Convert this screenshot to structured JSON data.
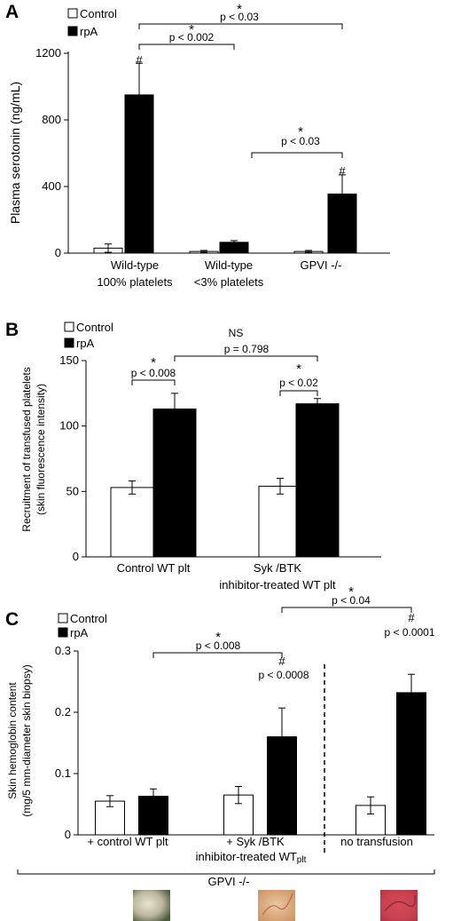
{
  "chart_data": [
    {
      "panel": "A",
      "type": "bar",
      "ylabel": "Plasma serotonin (ng/mL)",
      "ylim": [
        0,
        1200
      ],
      "yticks": [
        0,
        400,
        800,
        1200
      ],
      "categories": [
        [
          "Wild-type",
          "100% platelets"
        ],
        [
          "Wild-type",
          "<3% platelets"
        ],
        [
          "GPVI -/-"
        ]
      ],
      "series": [
        {
          "name": "Control",
          "color": "#ffffff",
          "values": [
            30,
            10,
            10
          ],
          "errors": [
            25,
            6,
            6
          ]
        },
        {
          "name": "rpA",
          "color": "#000000",
          "values": [
            950,
            65,
            355
          ],
          "errors": [
            190,
            10,
            115
          ]
        }
      ],
      "legend": "top-left",
      "annotations": [
        {
          "star": "*",
          "text": "p < 0.03"
        },
        {
          "star": "*",
          "text": "p < 0.002"
        },
        {
          "star": "*",
          "text": "p < 0.03"
        }
      ],
      "hash": [
        "#",
        "#"
      ]
    },
    {
      "panel": "B",
      "type": "bar",
      "ylabel": [
        "Recruitment of transfused platelets",
        "(skin fluorescence intensity)"
      ],
      "ylim": [
        0,
        150
      ],
      "yticks": [
        0,
        50,
        100,
        150
      ],
      "categories": [
        [
          "Control WT plt"
        ],
        [
          "Syk /BTK",
          "inhibitor-treated WT plt"
        ]
      ],
      "series": [
        {
          "name": "Control",
          "color": "#ffffff",
          "values": [
            53,
            54
          ],
          "errors": [
            5,
            6
          ]
        },
        {
          "name": "rpA",
          "color": "#000000",
          "values": [
            113,
            117
          ],
          "errors": [
            12,
            4
          ]
        }
      ],
      "legend": "top-left",
      "annotations": [
        {
          "star": "",
          "text": "NS"
        },
        {
          "star": "",
          "text": "p = 0.798"
        },
        {
          "star": "*",
          "text": "p < 0.008"
        },
        {
          "star": "*",
          "text": "p < 0.02"
        }
      ]
    },
    {
      "panel": "C",
      "type": "bar",
      "ylabel": [
        "Skin hemoglobin content",
        "(mg/5 mm-diameter skin biopsy)"
      ],
      "ylim": [
        0,
        0.3
      ],
      "yticks": [
        "0",
        "0.1",
        "0.2",
        "0.3"
      ],
      "categories": [
        [
          "+ control WT plt"
        ],
        [
          "+ Syk /BTK"
        ],
        [
          "no transfusion"
        ]
      ],
      "category_sublabel": [
        "inhibitor-treated WT",
        "plt"
      ],
      "group_label": "GPVI -/-",
      "series": [
        {
          "name": "Control",
          "color": "#ffffff",
          "values": [
            0.055,
            0.065,
            0.048
          ],
          "errors": [
            0.009,
            0.014,
            0.014
          ]
        },
        {
          "name": "rpA",
          "color": "#000000",
          "values": [
            0.063,
            0.16,
            0.232
          ],
          "errors": [
            0.012,
            0.047,
            0.03
          ]
        }
      ],
      "legend": "top-left",
      "annotations": [
        {
          "star": "*",
          "text": "p < 0.04"
        },
        {
          "star": "*",
          "text": "p < 0.008"
        },
        {
          "hash": "#",
          "text": "p < 0.0008"
        },
        {
          "hash": "#",
          "text": "p < 0.0001"
        }
      ]
    }
  ]
}
